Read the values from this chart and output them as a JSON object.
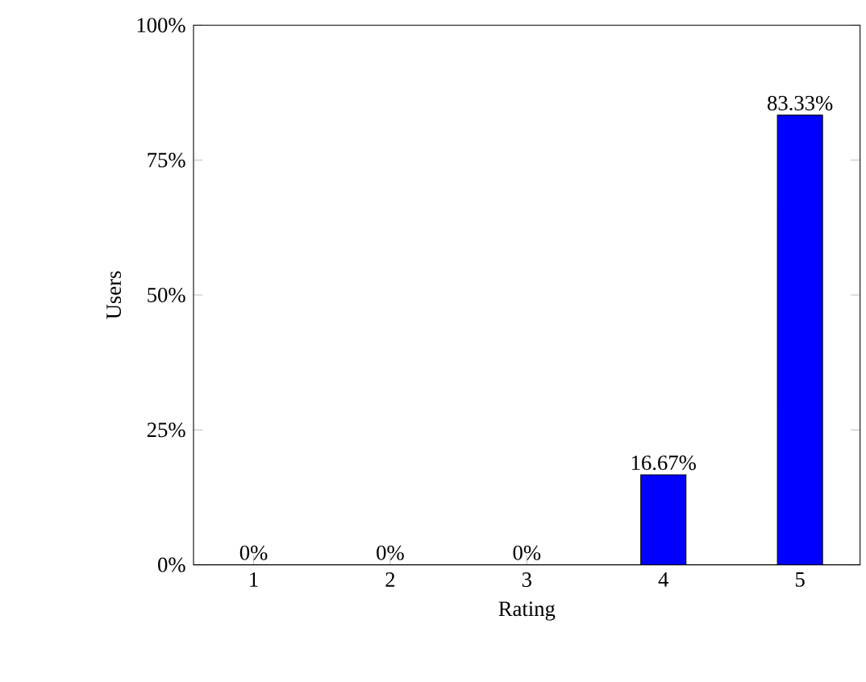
{
  "chart_data": {
    "type": "bar",
    "xlabel": "Rating",
    "ylabel": "Users",
    "categories": [
      "1",
      "2",
      "3",
      "4",
      "5"
    ],
    "values": [
      0,
      0,
      0,
      16.67,
      83.33
    ],
    "value_labels": [
      "0%",
      "0%",
      "0%",
      "16.67%",
      "83.33%"
    ],
    "color": "#0000ff",
    "ylim": [
      0,
      100
    ],
    "yticks": [
      {
        "value": 0,
        "label": "0%"
      },
      {
        "value": 25,
        "label": "25%"
      },
      {
        "value": 50,
        "label": "50%"
      },
      {
        "value": 75,
        "label": "75%"
      },
      {
        "value": 100,
        "label": "100%"
      }
    ],
    "grid": false
  }
}
